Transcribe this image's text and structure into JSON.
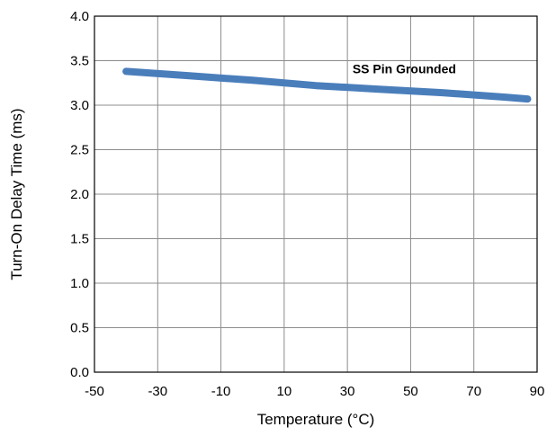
{
  "chart_data": {
    "type": "line",
    "title": "",
    "xlabel": "Temperature (°C)",
    "ylabel": "Turn-On Delay Time (ms)",
    "xlim": [
      -50,
      90
    ],
    "ylim": [
      0.0,
      4.0
    ],
    "xticks": [
      -50,
      -30,
      -10,
      10,
      30,
      50,
      70,
      90
    ],
    "yticks": [
      "0.0",
      "0.5",
      "1.0",
      "1.5",
      "2.0",
      "2.5",
      "3.0",
      "3.5",
      "4.0"
    ],
    "grid": true,
    "series": [
      {
        "name": "SS Pin Grounded",
        "color": "#4a7ebb",
        "x": [
          -40,
          -20,
          0,
          20,
          40,
          60,
          80,
          87
        ],
        "y": [
          3.38,
          3.33,
          3.28,
          3.22,
          3.18,
          3.14,
          3.09,
          3.07
        ]
      }
    ],
    "annotations": [
      {
        "text": "SS Pin Grounded",
        "x": 48,
        "y": 3.41
      }
    ]
  }
}
